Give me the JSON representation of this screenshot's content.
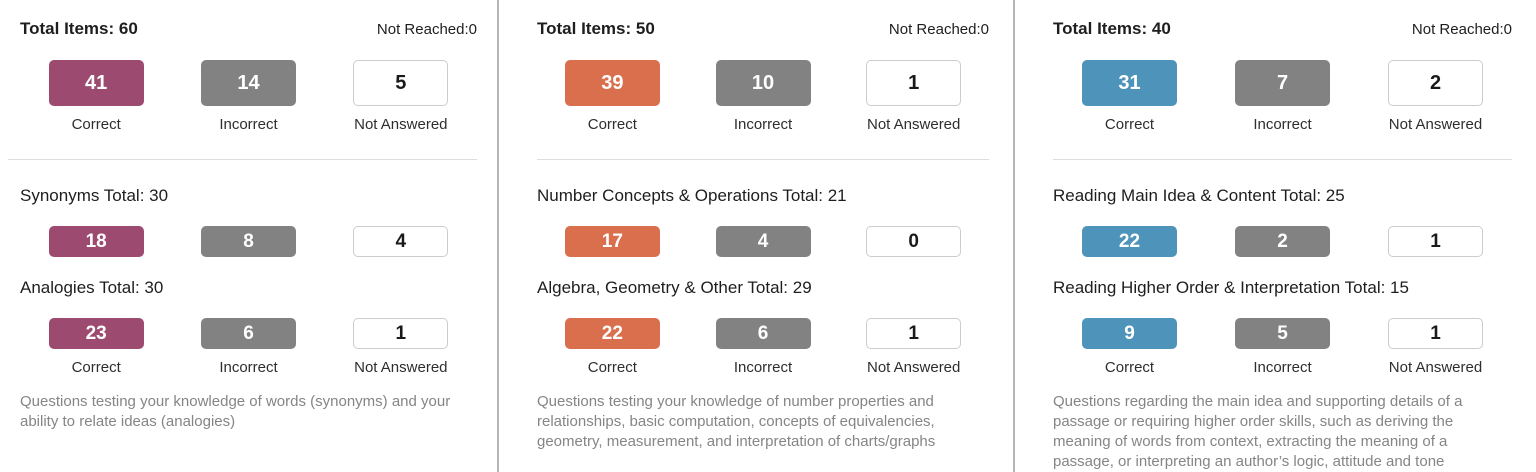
{
  "colors": {
    "verbal_accent": "#9d4a70",
    "quantitative_accent": "#d96f4d",
    "reading_accent": "#4e93b9",
    "incorrect_gray": "#828282"
  },
  "labels": {
    "correct": "Correct",
    "incorrect": "Incorrect",
    "not_answered": "Not Answered"
  },
  "panels": [
    {
      "total_heading": "Total Items: 60",
      "not_reached": "Not Reached:0",
      "totals": {
        "correct": "41",
        "incorrect": "14",
        "not_answered": "5"
      },
      "sections": [
        {
          "heading": "Synonyms Total: 30",
          "correct": "18",
          "incorrect": "8",
          "not_answered": "4"
        },
        {
          "heading": "Analogies Total: 30",
          "correct": "23",
          "incorrect": "6",
          "not_answered": "1"
        }
      ],
      "description": "Questions testing your knowledge of words (synonyms) and your ability to relate ideas (analogies)"
    },
    {
      "total_heading": "Total Items: 50",
      "not_reached": "Not Reached:0",
      "totals": {
        "correct": "39",
        "incorrect": "10",
        "not_answered": "1"
      },
      "sections": [
        {
          "heading": "Number Concepts & Operations Total: 21",
          "correct": "17",
          "incorrect": "4",
          "not_answered": "0"
        },
        {
          "heading": "Algebra, Geometry & Other Total: 29",
          "correct": "22",
          "incorrect": "6",
          "not_answered": "1"
        }
      ],
      "description": "Questions testing your knowledge of number properties and relationships, basic computation, concepts of equivalencies, geometry, measurement, and interpretation of charts/graphs"
    },
    {
      "total_heading": "Total Items: 40",
      "not_reached": "Not Reached:0",
      "totals": {
        "correct": "31",
        "incorrect": "7",
        "not_answered": "2"
      },
      "sections": [
        {
          "heading": "Reading Main Idea & Content Total: 25",
          "correct": "22",
          "incorrect": "2",
          "not_answered": "1"
        },
        {
          "heading": "Reading Higher Order & Interpretation Total: 15",
          "correct": "9",
          "incorrect": "5",
          "not_answered": "1"
        }
      ],
      "description": "Questions regarding the main idea and supporting details of a passage or requiring higher order skills, such as deriving the meaning of words from context, extracting the meaning of a passage, or interpreting an author’s logic, attitude and tone"
    }
  ]
}
